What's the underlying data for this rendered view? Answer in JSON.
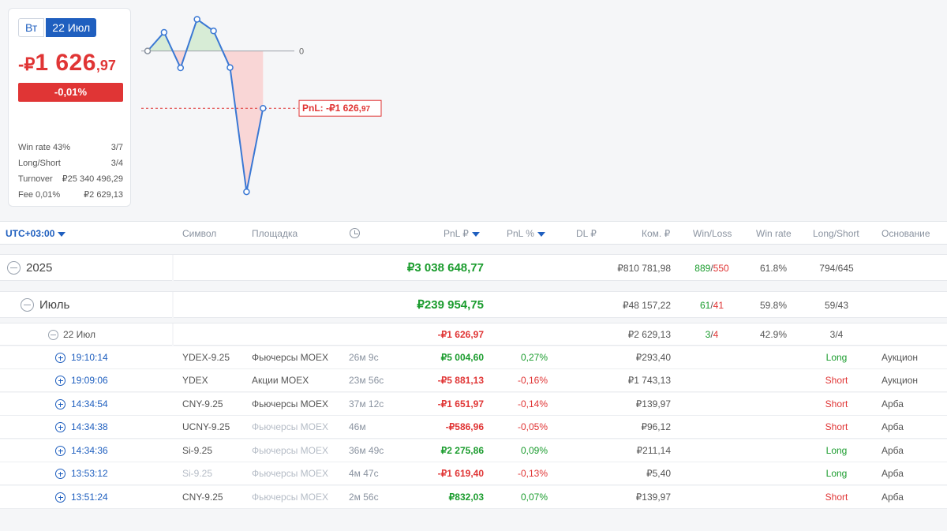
{
  "summary": {
    "day_label": "Вт",
    "date_label": "22 Июл",
    "pnl_currency": "-₽",
    "pnl_int": "1 626",
    "pnl_dec": ",97",
    "pnl_pct": "-0,01%",
    "stats": [
      {
        "label": "Win rate 43%",
        "value": "3/7"
      },
      {
        "label": "Long/Short",
        "value": "3/4"
      },
      {
        "label": "Turnover",
        "value": "₽25 340 496,29"
      },
      {
        "label": "Fee 0,01%",
        "value": "₽2 629,13"
      }
    ]
  },
  "chart_data": {
    "type": "line",
    "title": "",
    "series": [
      {
        "name": "cumulative PnL",
        "values": [
          0,
          530,
          -480,
          900,
          570,
          -470,
          -4000,
          -1626.97
        ]
      }
    ],
    "zero_label": "0",
    "final_label": "PnL: -₽1 626,",
    "final_label_dec": "97",
    "ylim": [
      -4200,
      1000
    ],
    "colors": {
      "line": "#3a78d4",
      "positive_fill": "#d7ecd6",
      "negative_fill": "#f9d6d6",
      "marker": "#e03535"
    }
  },
  "table": {
    "headers": {
      "tz": "UTC+03:00",
      "symbol": "Символ",
      "venue": "Площадка",
      "pnl": "PnL ₽",
      "pnl_pct": "PnL %",
      "dl": "DL ₽",
      "fee": "Ком. ₽",
      "winloss": "Win/Loss",
      "winrate": "Win rate",
      "longshort": "Long/Short",
      "reason": "Основание"
    },
    "year": {
      "label": "2025",
      "pnl": "₽3 038 648,77",
      "fee": "₽810 781,98",
      "wins": "889",
      "losses": "550",
      "winrate": "61.8%",
      "longshort": "794/645"
    },
    "month": {
      "label": "Июль",
      "pnl": "₽239 954,75",
      "fee": "₽48 157,22",
      "wins": "61",
      "losses": "41",
      "winrate": "59.8%",
      "longshort": "59/43"
    },
    "day": {
      "label": "22 Июл",
      "pnl": "-₽1 626,97",
      "fee": "₽2 629,13",
      "wins": "3",
      "losses": "4",
      "winrate": "42.9%",
      "longshort": "3/4"
    },
    "trades": [
      {
        "time": "19:10:14",
        "symbol": "YDEX-9.25",
        "venue": "Фьючерсы MOEX",
        "duration": "26м 9с",
        "pnl": "₽5 004,60",
        "pct": "0,27%",
        "fee": "₽293,40",
        "side": "Long",
        "reason": "Аукцион"
      },
      {
        "time": "19:09:06",
        "symbol": "YDEX",
        "venue": "Акции MOEX",
        "duration": "23м 56с",
        "pnl": "-₽5 881,13",
        "pct": "-0,16%",
        "fee": "₽1 743,13",
        "side": "Short",
        "reason": "Аукцион"
      },
      {
        "time": "14:34:54",
        "symbol": "CNY-9.25",
        "venue": "Фьючерсы MOEX",
        "duration": "37м 12с",
        "pnl": "-₽1 651,97",
        "pct": "-0,14%",
        "fee": "₽139,97",
        "side": "Short",
        "reason": "Арба"
      },
      {
        "time": "14:34:38",
        "symbol": "UCNY-9.25",
        "venue": "Фьючерсы MOEX",
        "duration": "46м",
        "pnl": "-₽586,96",
        "pct": "-0,05%",
        "fee": "₽96,12",
        "side": "Short",
        "reason": "Арба"
      },
      {
        "time": "14:34:36",
        "symbol": "Si-9.25",
        "venue": "Фьючерсы MOEX",
        "duration": "36м 49с",
        "pnl": "₽2 275,86",
        "pct": "0,09%",
        "fee": "₽211,14",
        "side": "Long",
        "reason": "Арба"
      },
      {
        "time": "13:53:12",
        "symbol": "Si-9.25",
        "venue": "Фьючерсы MOEX",
        "duration": "4м 47с",
        "pnl": "-₽1 619,40",
        "pct": "-0,13%",
        "fee": "₽5,40",
        "side": "Long",
        "reason": "Арба"
      },
      {
        "time": "13:51:24",
        "symbol": "CNY-9.25",
        "venue": "Фьючерсы MOEX",
        "duration": "2м 56с",
        "pnl": "₽832,03",
        "pct": "0,07%",
        "fee": "₽139,97",
        "side": "Short",
        "reason": "Арба"
      }
    ]
  }
}
